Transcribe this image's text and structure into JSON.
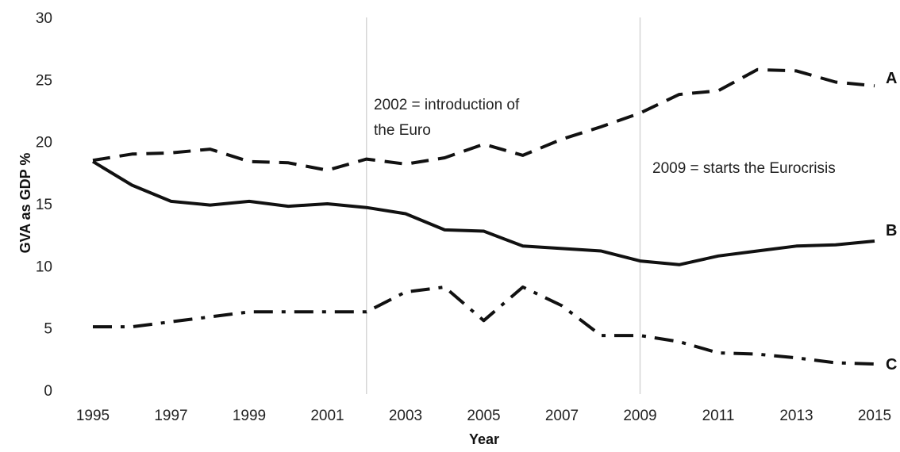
{
  "chart_data": {
    "type": "line",
    "title": "",
    "xlabel": "Year",
    "ylabel": "GVA as GDP %",
    "ylim": [
      0,
      30
    ],
    "xlim": [
      1995,
      2015
    ],
    "grid": false,
    "y_ticks": [
      "0",
      "5",
      "10",
      "15",
      "20",
      "25",
      "30"
    ],
    "x_ticks": [
      "1995",
      "1997",
      "1999",
      "2001",
      "2003",
      "2005",
      "2007",
      "2009",
      "2011",
      "2013",
      "2015"
    ],
    "x": [
      1995,
      1996,
      1997,
      1998,
      1999,
      2000,
      2001,
      2002,
      2003,
      2004,
      2005,
      2006,
      2007,
      2008,
      2009,
      2010,
      2011,
      2012,
      2013,
      2014,
      2015
    ],
    "series": [
      {
        "name": "A",
        "style": "dashed",
        "values": [
          18.5,
          19.0,
          19.1,
          19.4,
          18.4,
          18.3,
          17.7,
          18.6,
          18.2,
          18.7,
          19.8,
          18.9,
          20.2,
          21.2,
          22.3,
          23.8,
          24.1,
          25.8,
          25.7,
          24.8,
          24.5
        ]
      },
      {
        "name": "B",
        "style": "solid",
        "values": [
          18.4,
          16.5,
          15.2,
          14.9,
          15.2,
          14.8,
          15.0,
          14.7,
          14.2,
          12.9,
          12.8,
          11.6,
          11.4,
          11.2,
          10.4,
          10.1,
          10.8,
          11.2,
          11.6,
          11.7,
          12.0
        ]
      },
      {
        "name": "C",
        "style": "dash-dot",
        "values": [
          5.1,
          5.1,
          5.5,
          5.9,
          6.3,
          6.3,
          6.3,
          6.3,
          7.9,
          8.3,
          5.6,
          8.3,
          6.8,
          4.4,
          4.4,
          3.9,
          3.0,
          2.9,
          2.6,
          2.2,
          2.1
        ]
      }
    ],
    "reference_lines": [
      {
        "x": 2002,
        "label_lines": [
          "2002 = introduction of",
          "the Euro"
        ]
      },
      {
        "x": 2009,
        "label_lines": [
          "2009 = starts the Eurocrisis"
        ]
      }
    ]
  }
}
